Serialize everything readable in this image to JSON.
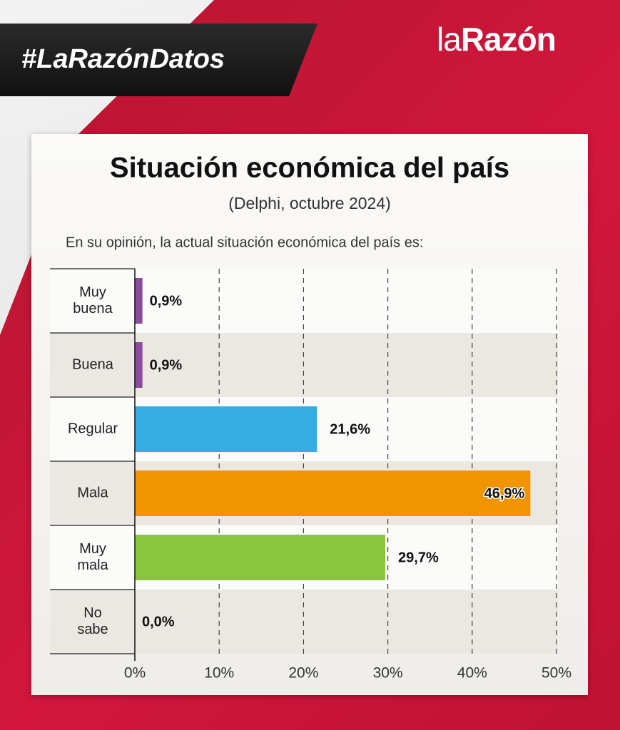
{
  "header": {
    "hashtag": "#LaRazónDatos",
    "logo": [
      "la",
      "Razón"
    ]
  },
  "chart_data": {
    "type": "bar",
    "orientation": "horizontal",
    "title": "Situación económica del país",
    "subtitle": "(Delphi, octubre 2024)",
    "question": "En su opinión, la actual situación económica del país es:",
    "categories": [
      "Muy\nbuena",
      "Buena",
      "Regular",
      "Mala",
      "Muy\nmala",
      "No\nsabe"
    ],
    "values": [
      0.9,
      0.9,
      21.6,
      46.9,
      29.7,
      0.0
    ],
    "value_labels": [
      "0,9%",
      "0,9%",
      "21,6%",
      "46,9%",
      "29,7%",
      "0,0%"
    ],
    "colors": [
      "#8a4c9e",
      "#8a4c9e",
      "#35ade2",
      "#f29400",
      "#8cc63f",
      "#8cc63f"
    ],
    "xlim": [
      0,
      50
    ],
    "xticks": [
      {
        "value": 0,
        "label": "0%"
      },
      {
        "value": 10,
        "label": "10%"
      },
      {
        "value": 20,
        "label": "20%"
      },
      {
        "value": 30,
        "label": "30%"
      },
      {
        "value": 40,
        "label": "40%"
      },
      {
        "value": 50,
        "label": "50%"
      }
    ],
    "grid": true
  }
}
